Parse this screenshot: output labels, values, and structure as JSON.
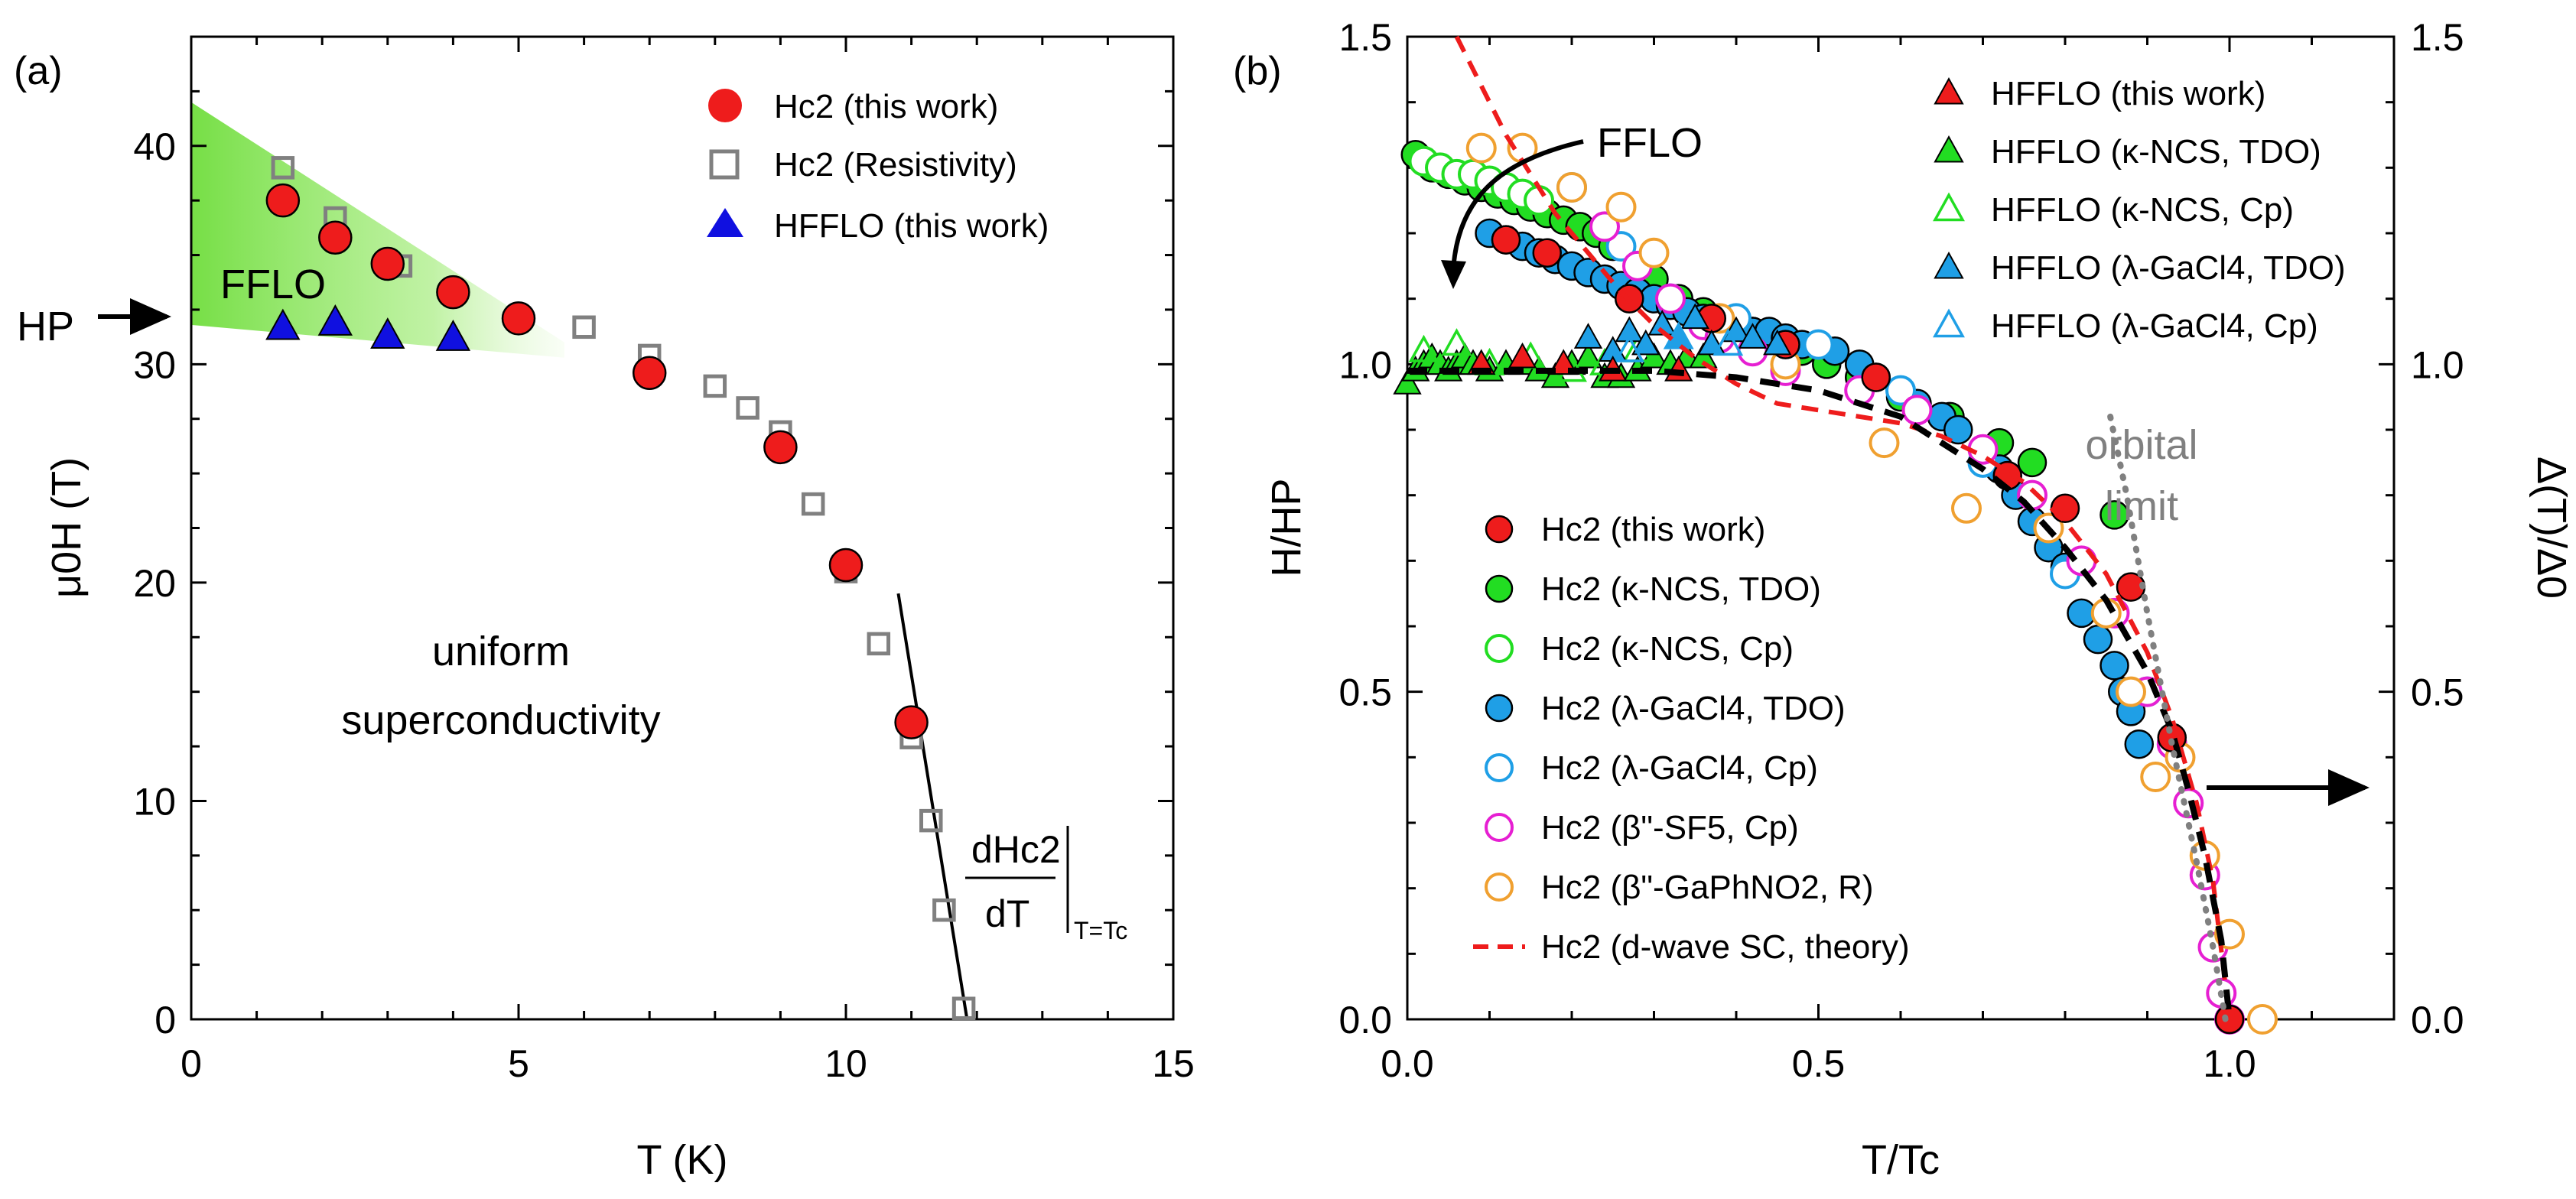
{
  "colors": {
    "red": "#ee1c1c",
    "gray": "#808080",
    "blue": "#1010e0",
    "green": "#22dd22",
    "lightblue": "#1f9fe6",
    "magenta": "#e61fd2",
    "orange": "#f0a030",
    "fflo_fill": "#6fdd3c",
    "theory_red": "#ee1c1c"
  },
  "chart_data": [
    {
      "type": "scatter",
      "panel_label": "(a)",
      "xlabel": "T (K)",
      "ylabel": "μ0H (T)",
      "xlim": [
        0,
        15
      ],
      "ylim": [
        0,
        45
      ],
      "xticks": [
        "0",
        "5",
        "10",
        "15"
      ],
      "yticks": [
        "0",
        "10",
        "20",
        "30",
        "40"
      ],
      "annotations": {
        "hp_label": "HP",
        "fflo_label": "FFLO",
        "uniform_1": "uniform",
        "uniform_2": "superconductivity",
        "slope_num": "dHc2",
        "slope_den": "dT",
        "slope_eval": "T=Tc"
      },
      "hp_value": 32.3,
      "series": [
        {
          "name": "Hc2 (this work)",
          "marker": "filled-circle",
          "color": "#ee1c1c",
          "x": [
            1.4,
            2.2,
            3.0,
            4.0,
            5.0,
            7.0,
            9.0,
            10.0,
            11.0
          ],
          "y": [
            37.5,
            35.8,
            34.6,
            33.3,
            32.1,
            29.6,
            26.2,
            20.8,
            13.6
          ]
        },
        {
          "name": "Hc2 (Resistivity)",
          "marker": "open-square",
          "color": "#808080",
          "x": [
            1.4,
            2.2,
            3.2,
            6.0,
            7.0,
            8.0,
            8.5,
            9.0,
            9.5,
            10.0,
            10.5,
            11.0,
            11.3,
            11.5,
            11.8
          ],
          "y": [
            39.0,
            36.7,
            34.5,
            31.7,
            30.4,
            29.0,
            28.0,
            26.9,
            23.6,
            20.5,
            17.2,
            12.9,
            9.1,
            5.0,
            0.5
          ]
        },
        {
          "name": "HFFLO (this work)",
          "marker": "filled-triangle",
          "color": "#1010e0",
          "x": [
            1.4,
            2.2,
            3.0,
            4.0
          ],
          "y": [
            31.7,
            31.9,
            31.3,
            31.2
          ]
        }
      ],
      "tangent_line": {
        "x": [
          10.8,
          11.85
        ],
        "y": [
          19.5,
          0
        ]
      }
    },
    {
      "type": "scatter",
      "panel_label": "(b)",
      "xlabel": "T/Tc",
      "ylabel": "H/HP",
      "ylabel_right": "Δ(T)/Δ0",
      "xlim": [
        0,
        1.2
      ],
      "ylim": [
        0,
        1.5
      ],
      "xticks": [
        "0.0",
        "0.5",
        "1.0"
      ],
      "yticks": [
        "0.0",
        "0.5",
        "1.0",
        "1.5"
      ],
      "annotations": {
        "fflo_label": "FFLO",
        "orbital_1": "orbital",
        "orbital_2": "limit"
      },
      "legend_top": [
        {
          "label": "HFFLO (this work)",
          "marker": "filled-triangle",
          "color": "#ee1c1c"
        },
        {
          "label": "HFFLO (κ-NCS, TDO)",
          "marker": "filled-triangle",
          "color": "#22dd22"
        },
        {
          "label": "HFFLO (κ-NCS, Cp)",
          "marker": "open-triangle",
          "color": "#22dd22"
        },
        {
          "label": "HFFLO (λ-GaCl4, TDO)",
          "marker": "filled-triangle",
          "color": "#1f9fe6"
        },
        {
          "label": "HFFLO (λ-GaCl4, Cp)",
          "marker": "open-triangle",
          "color": "#1f9fe6"
        }
      ],
      "legend_bottom": [
        {
          "label": "Hc2 (this work)",
          "marker": "filled-circle",
          "color": "#ee1c1c"
        },
        {
          "label": "Hc2 (κ-NCS, TDO)",
          "marker": "filled-circle",
          "color": "#22dd22"
        },
        {
          "label": "Hc2 (κ-NCS, Cp)",
          "marker": "open-circle",
          "color": "#22dd22"
        },
        {
          "label": "Hc2 (λ-GaCl4, TDO)",
          "marker": "filled-circle",
          "color": "#1f9fe6"
        },
        {
          "label": "Hc2 (λ-GaCl4, Cp)",
          "marker": "open-circle",
          "color": "#1f9fe6"
        },
        {
          "label": "Hc2 (β\"-SF5, Cp)",
          "marker": "open-circle",
          "color": "#e61fd2"
        },
        {
          "label": "Hc2 (β\"-GaPhNO2, R)",
          "marker": "open-circle",
          "color": "#f0a030"
        },
        {
          "label": "Hc2 (d-wave SC, theory)",
          "marker": "dashed-line",
          "color": "#ee1c1c"
        }
      ],
      "series": [
        {
          "name": "Hc2 (κ-NCS, TDO)",
          "marker": "filled-circle",
          "color": "#22dd22",
          "x": [
            0.01,
            0.02,
            0.03,
            0.05,
            0.07,
            0.09,
            0.11,
            0.13,
            0.15,
            0.17,
            0.19,
            0.21,
            0.23,
            0.25,
            0.28,
            0.3,
            0.33,
            0.36,
            0.39,
            0.42,
            0.45,
            0.48,
            0.51,
            0.55,
            0.6,
            0.66,
            0.72,
            0.76,
            0.86
          ],
          "y": [
            1.32,
            1.31,
            1.3,
            1.29,
            1.28,
            1.27,
            1.26,
            1.25,
            1.24,
            1.23,
            1.22,
            1.21,
            1.2,
            1.18,
            1.15,
            1.13,
            1.1,
            1.08,
            1.06,
            1.05,
            1.04,
            1.02,
            1.0,
            0.98,
            0.95,
            0.92,
            0.88,
            0.85,
            0.77
          ]
        },
        {
          "name": "Hc2 (κ-NCS, Cp)",
          "marker": "open-circle",
          "color": "#22dd22",
          "x": [
            0.02,
            0.04,
            0.06,
            0.08,
            0.1,
            0.12,
            0.14,
            0.16
          ],
          "y": [
            1.31,
            1.3,
            1.29,
            1.29,
            1.28,
            1.27,
            1.26,
            1.25
          ]
        },
        {
          "name": "Hc2 (λ-GaCl4, TDO)",
          "marker": "filled-circle",
          "color": "#1f9fe6",
          "x": [
            0.1,
            0.12,
            0.14,
            0.16,
            0.18,
            0.2,
            0.22,
            0.24,
            0.26,
            0.28,
            0.3,
            0.32,
            0.34,
            0.36,
            0.38,
            0.4,
            0.42,
            0.44,
            0.46,
            0.48,
            0.5,
            0.52,
            0.55,
            0.57,
            0.6,
            0.62,
            0.65,
            0.67,
            0.7,
            0.72,
            0.74,
            0.76,
            0.78,
            0.8,
            0.82,
            0.84,
            0.86,
            0.87,
            0.88,
            0.89
          ],
          "y": [
            1.2,
            1.19,
            1.18,
            1.17,
            1.16,
            1.15,
            1.14,
            1.13,
            1.12,
            1.11,
            1.1,
            1.09,
            1.08,
            1.07,
            1.06,
            1.06,
            1.05,
            1.05,
            1.04,
            1.03,
            1.03,
            1.02,
            1.0,
            0.98,
            0.96,
            0.94,
            0.92,
            0.9,
            0.87,
            0.84,
            0.8,
            0.76,
            0.72,
            0.69,
            0.62,
            0.58,
            0.54,
            0.5,
            0.47,
            0.42
          ]
        },
        {
          "name": "Hc2 (λ-GaCl4, Cp)",
          "marker": "open-circle",
          "color": "#1f9fe6",
          "x": [
            0.2,
            0.26,
            0.32,
            0.4,
            0.5,
            0.6,
            0.7,
            0.8,
            0.9
          ],
          "y": [
            1.27,
            1.18,
            1.1,
            1.07,
            1.03,
            0.96,
            0.85,
            0.68,
            0.5
          ]
        },
        {
          "name": "Hc2 (β\"-SF5, Cp)",
          "marker": "open-circle",
          "color": "#e61fd2",
          "x": [
            0.24,
            0.28,
            0.32,
            0.36,
            0.38,
            0.42,
            0.46,
            0.55,
            0.62,
            0.7,
            0.76,
            0.82,
            0.86,
            0.9,
            0.93,
            0.95,
            0.97,
            0.98,
            0.99,
            1.0
          ],
          "y": [
            1.21,
            1.15,
            1.1,
            1.06,
            1.04,
            1.02,
            0.99,
            0.96,
            0.93,
            0.87,
            0.8,
            0.7,
            0.62,
            0.5,
            0.42,
            0.33,
            0.22,
            0.11,
            0.04,
            0.0
          ]
        },
        {
          "name": "Hc2 (β\"-GaPhNO2, R)",
          "marker": "open-circle",
          "color": "#f0a030",
          "x": [
            0.09,
            0.14,
            0.2,
            0.26,
            0.3,
            0.38,
            0.46,
            0.58,
            0.68,
            0.78,
            0.85,
            0.88,
            0.91,
            0.94,
            0.97,
            1.0,
            1.04
          ],
          "y": [
            1.33,
            1.33,
            1.27,
            1.24,
            1.17,
            1.07,
            1.0,
            0.88,
            0.78,
            0.75,
            0.62,
            0.5,
            0.37,
            0.4,
            0.25,
            0.13,
            0.0
          ]
        },
        {
          "name": "Hc2 (this work)",
          "marker": "filled-circle",
          "color": "#ee1c1c",
          "x": [
            0.12,
            0.17,
            0.27,
            0.37,
            0.46,
            0.57,
            0.73,
            0.8,
            0.88,
            0.93,
            1.0
          ],
          "y": [
            1.19,
            1.17,
            1.1,
            1.07,
            1.03,
            0.98,
            0.83,
            0.78,
            0.66,
            0.43,
            0.0
          ]
        },
        {
          "name": "HFFLO (κ-NCS, TDO)",
          "marker": "filled-triangle",
          "color": "#22dd22",
          "x": [
            0.0,
            0.01,
            0.02,
            0.03,
            0.04,
            0.05,
            0.06,
            0.07,
            0.08,
            0.1,
            0.12,
            0.14,
            0.16,
            0.18,
            0.2,
            0.22,
            0.24,
            0.26,
            0.28,
            0.3,
            0.32,
            0.34,
            0.36
          ],
          "y": [
            0.97,
            0.99,
            1.0,
            1.01,
            1.0,
            0.99,
            1.0,
            1.01,
            1.0,
            0.99,
            1.0,
            1.0,
            0.99,
            0.98,
            1.0,
            1.01,
            0.98,
            0.98,
            0.99,
            1.01,
            1.0,
            1.01,
            1.01
          ]
        },
        {
          "name": "HFFLO (κ-NCS, Cp)",
          "marker": "open-triangle",
          "color": "#22dd22",
          "x": [
            0.02,
            0.06,
            0.1,
            0.15,
            0.2,
            0.24,
            0.28
          ],
          "y": [
            1.02,
            1.03,
            1.0,
            1.01,
            0.99,
            1.0,
            1.02
          ]
        },
        {
          "name": "HFFLO (λ-GaCl4, TDO)",
          "marker": "filled-triangle",
          "color": "#1f9fe6",
          "x": [
            0.22,
            0.25,
            0.27,
            0.29,
            0.31,
            0.33,
            0.35,
            0.37,
            0.4,
            0.42,
            0.45
          ],
          "y": [
            1.04,
            1.02,
            1.05,
            1.03,
            1.06,
            1.04,
            1.07,
            1.03,
            1.05,
            1.04,
            1.03
          ]
        },
        {
          "name": "HFFLO (λ-GaCl4, Cp)",
          "marker": "open-triangle",
          "color": "#1f9fe6",
          "x": [
            0.27,
            0.33,
            0.39
          ],
          "y": [
            1.02,
            1.04,
            1.03
          ]
        },
        {
          "name": "HFFLO (this work)",
          "marker": "filled-triangle",
          "color": "#ee1c1c",
          "x": [
            0.09,
            0.14,
            0.19,
            0.25,
            0.33
          ],
          "y": [
            1.0,
            1.01,
            1.0,
            0.99,
            0.99
          ]
        }
      ],
      "theory_curve": {
        "name": "Hc2 (d-wave SC, theory)",
        "x": [
          0.06,
          0.08,
          0.1,
          0.12,
          0.15,
          0.18,
          0.22,
          0.26,
          0.3,
          0.35,
          0.4,
          0.45,
          0.5,
          0.55,
          0.6,
          0.65,
          0.7,
          0.75,
          0.8,
          0.85,
          0.9,
          0.93,
          0.96,
          0.98,
          1.0
        ],
        "y": [
          1.5,
          1.45,
          1.4,
          1.35,
          1.29,
          1.23,
          1.17,
          1.11,
          1.06,
          1.01,
          0.97,
          0.94,
          0.93,
          0.92,
          0.91,
          0.89,
          0.86,
          0.82,
          0.76,
          0.68,
          0.56,
          0.46,
          0.33,
          0.21,
          0.0
        ]
      },
      "gap_curve": {
        "x": [
          0.0,
          0.1,
          0.2,
          0.3,
          0.4,
          0.5,
          0.55,
          0.6,
          0.65,
          0.7,
          0.75,
          0.8,
          0.85,
          0.9,
          0.93,
          0.95,
          0.97,
          0.99,
          1.0
        ],
        "y": [
          0.99,
          0.99,
          0.99,
          0.99,
          0.98,
          0.96,
          0.94,
          0.92,
          0.88,
          0.84,
          0.79,
          0.72,
          0.64,
          0.53,
          0.44,
          0.35,
          0.25,
          0.12,
          0.0
        ]
      },
      "orbital_limit": {
        "x": [
          0.855,
          0.875,
          0.9,
          0.93,
          0.96,
          0.98,
          0.995
        ],
        "y": [
          0.92,
          0.8,
          0.62,
          0.42,
          0.24,
          0.11,
          0.0
        ]
      }
    }
  ]
}
